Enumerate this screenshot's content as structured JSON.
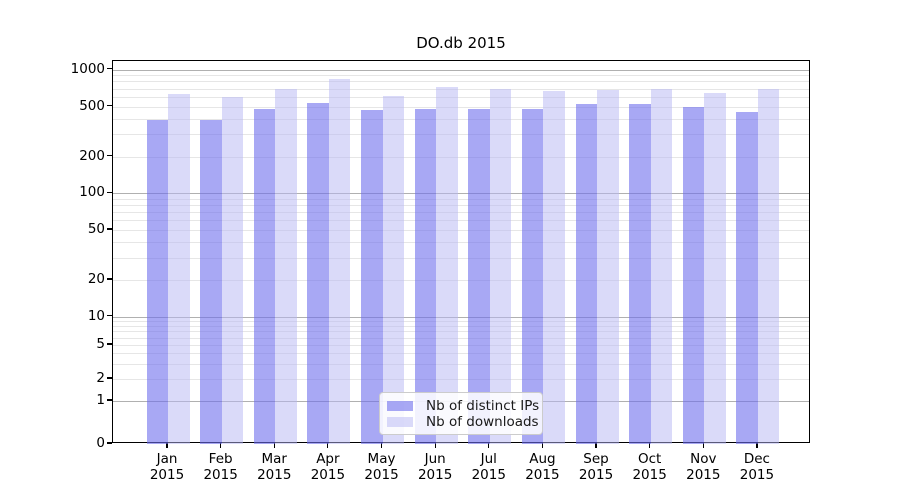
{
  "chart_data": {
    "type": "bar",
    "title": "DO.db 2015",
    "categories": [
      "Jan",
      "Feb",
      "Mar",
      "Apr",
      "May",
      "Jun",
      "Jul",
      "Aug",
      "Sep",
      "Oct",
      "Nov",
      "Dec"
    ],
    "year_label": "2015",
    "series": [
      {
        "name": "Nb of distinct IPs",
        "color": "#6e6eed",
        "opacity": 0.6,
        "values": [
          390,
          390,
          480,
          535,
          470,
          480,
          480,
          480,
          525,
          530,
          495,
          455
        ]
      },
      {
        "name": "Nb of downloads",
        "color": "#b5b5f3",
        "opacity": 0.5,
        "values": [
          630,
          600,
          690,
          830,
          610,
          720,
          690,
          670,
          680,
          690,
          640,
          700
        ]
      }
    ],
    "xlabel": "",
    "ylabel": "",
    "yscale": "symlog",
    "ylim": [
      0,
      1000
    ],
    "yticks": [
      0,
      1,
      2,
      5,
      10,
      20,
      50,
      100,
      200,
      500,
      1000
    ],
    "grid": "on",
    "legend_position": "lower center",
    "axis_color": "#000000",
    "major_grid_color": "#b0b0b0",
    "minor_grid_color": "#e6e6e6"
  }
}
